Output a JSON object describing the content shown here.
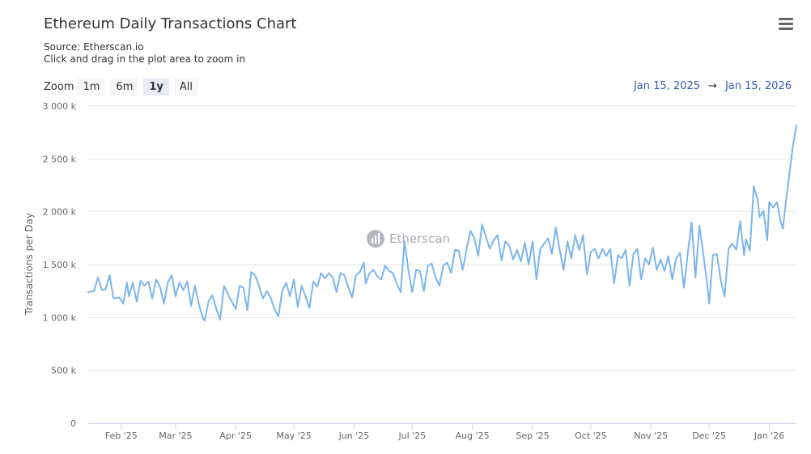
{
  "header": {
    "title": "Ethereum Daily Transactions Chart",
    "source": "Source: Etherscan.io",
    "hint": "Click and drag in the plot area to zoom in"
  },
  "zoom": {
    "label": "Zoom",
    "buttons": [
      "1m",
      "6m",
      "1y",
      "All"
    ],
    "active": "1y"
  },
  "range": {
    "from": "Jan 15, 2025",
    "arrow": "→",
    "to": "Jan 15, 2026"
  },
  "watermark": {
    "text": "Etherscan"
  },
  "icons": {
    "menu": "hamburger-menu-icon",
    "watermark_logo": "etherscan-logo-icon"
  },
  "colors": {
    "line": "#7cb5ec",
    "grid": "#e6e6e6",
    "range_text": "#335cad"
  },
  "chart_data": {
    "type": "line",
    "title": "Ethereum Daily Transactions Chart",
    "ylabel": "Transactions per Day",
    "ylim": [
      0,
      3000000
    ],
    "yticks": [
      {
        "value": 0,
        "label": "0"
      },
      {
        "value": 500000,
        "label": "500 k"
      },
      {
        "value": 1000000,
        "label": "1 000 k"
      },
      {
        "value": 1500000,
        "label": "1 500 k"
      },
      {
        "value": 2000000,
        "label": "2 000 k"
      },
      {
        "value": 2500000,
        "label": "2 500 k"
      },
      {
        "value": 3000000,
        "label": "3 000 k"
      }
    ],
    "xlim": [
      "2025-01-15",
      "2026-01-15"
    ],
    "xticks": [
      {
        "date": "2025-02-01",
        "label": "Feb '25"
      },
      {
        "date": "2025-03-01",
        "label": "Mar '25"
      },
      {
        "date": "2025-04-01",
        "label": "Apr '25"
      },
      {
        "date": "2025-05-01",
        "label": "May '25"
      },
      {
        "date": "2025-06-01",
        "label": "Jun '25"
      },
      {
        "date": "2025-07-01",
        "label": "Jul '25"
      },
      {
        "date": "2025-08-01",
        "label": "Aug '25"
      },
      {
        "date": "2025-09-01",
        "label": "Sep '25"
      },
      {
        "date": "2025-10-01",
        "label": "Oct '25"
      },
      {
        "date": "2025-11-01",
        "label": "Nov '25"
      },
      {
        "date": "2025-12-01",
        "label": "Dec '25"
      },
      {
        "date": "2026-01-01",
        "label": "Jan '26"
      }
    ],
    "series": [
      {
        "values": [
          [
            "2025-01-15",
            1240000
          ],
          [
            "2025-01-18",
            1250000
          ],
          [
            "2025-01-20",
            1380000
          ],
          [
            "2025-01-22",
            1260000
          ],
          [
            "2025-01-24",
            1270000
          ],
          [
            "2025-01-26",
            1400000
          ],
          [
            "2025-01-28",
            1180000
          ],
          [
            "2025-01-31",
            1190000
          ],
          [
            "2025-02-02",
            1130000
          ],
          [
            "2025-02-04",
            1330000
          ],
          [
            "2025-02-05",
            1200000
          ],
          [
            "2025-02-07",
            1330000
          ],
          [
            "2025-02-09",
            1150000
          ],
          [
            "2025-02-11",
            1350000
          ],
          [
            "2025-02-13",
            1300000
          ],
          [
            "2025-02-15",
            1340000
          ],
          [
            "2025-02-17",
            1180000
          ],
          [
            "2025-02-19",
            1360000
          ],
          [
            "2025-02-21",
            1290000
          ],
          [
            "2025-02-23",
            1130000
          ],
          [
            "2025-02-25",
            1330000
          ],
          [
            "2025-02-27",
            1400000
          ],
          [
            "2025-03-01",
            1200000
          ],
          [
            "2025-03-03",
            1330000
          ],
          [
            "2025-03-05",
            1260000
          ],
          [
            "2025-03-07",
            1340000
          ],
          [
            "2025-03-09",
            1110000
          ],
          [
            "2025-03-11",
            1300000
          ],
          [
            "2025-03-13",
            1130000
          ],
          [
            "2025-03-15",
            1000000
          ],
          [
            "2025-03-16",
            970000
          ],
          [
            "2025-03-18",
            1150000
          ],
          [
            "2025-03-20",
            1210000
          ],
          [
            "2025-03-22",
            1080000
          ],
          [
            "2025-03-24",
            980000
          ],
          [
            "2025-03-26",
            1300000
          ],
          [
            "2025-03-28",
            1220000
          ],
          [
            "2025-03-30",
            1150000
          ],
          [
            "2025-04-01",
            1080000
          ],
          [
            "2025-04-03",
            1300000
          ],
          [
            "2025-04-05",
            1280000
          ],
          [
            "2025-04-07",
            1070000
          ],
          [
            "2025-04-09",
            1430000
          ],
          [
            "2025-04-11",
            1400000
          ],
          [
            "2025-04-13",
            1300000
          ],
          [
            "2025-04-15",
            1180000
          ],
          [
            "2025-04-17",
            1250000
          ],
          [
            "2025-04-19",
            1190000
          ],
          [
            "2025-04-21",
            1080000
          ],
          [
            "2025-04-23",
            1010000
          ],
          [
            "2025-04-25",
            1250000
          ],
          [
            "2025-04-27",
            1330000
          ],
          [
            "2025-04-29",
            1200000
          ],
          [
            "2025-05-01",
            1360000
          ],
          [
            "2025-05-03",
            1100000
          ],
          [
            "2025-05-05",
            1300000
          ],
          [
            "2025-05-07",
            1200000
          ],
          [
            "2025-05-09",
            1090000
          ],
          [
            "2025-05-11",
            1340000
          ],
          [
            "2025-05-13",
            1290000
          ],
          [
            "2025-05-15",
            1420000
          ],
          [
            "2025-05-17",
            1370000
          ],
          [
            "2025-05-19",
            1420000
          ],
          [
            "2025-05-21",
            1380000
          ],
          [
            "2025-05-23",
            1240000
          ],
          [
            "2025-05-25",
            1420000
          ],
          [
            "2025-05-27",
            1400000
          ],
          [
            "2025-05-29",
            1290000
          ],
          [
            "2025-05-31",
            1190000
          ],
          [
            "2025-06-02",
            1400000
          ],
          [
            "2025-06-04",
            1430000
          ],
          [
            "2025-06-06",
            1520000
          ],
          [
            "2025-06-07",
            1320000
          ],
          [
            "2025-06-09",
            1420000
          ],
          [
            "2025-06-11",
            1450000
          ],
          [
            "2025-06-13",
            1390000
          ],
          [
            "2025-06-15",
            1360000
          ],
          [
            "2025-06-17",
            1490000
          ],
          [
            "2025-06-19",
            1440000
          ],
          [
            "2025-06-21",
            1420000
          ],
          [
            "2025-06-23",
            1320000
          ],
          [
            "2025-06-25",
            1240000
          ],
          [
            "2025-06-27",
            1720000
          ],
          [
            "2025-06-29",
            1450000
          ],
          [
            "2025-07-01",
            1240000
          ],
          [
            "2025-07-03",
            1450000
          ],
          [
            "2025-07-05",
            1440000
          ],
          [
            "2025-07-07",
            1250000
          ],
          [
            "2025-07-09",
            1490000
          ],
          [
            "2025-07-11",
            1510000
          ],
          [
            "2025-07-13",
            1380000
          ],
          [
            "2025-07-15",
            1300000
          ],
          [
            "2025-07-17",
            1490000
          ],
          [
            "2025-07-19",
            1520000
          ],
          [
            "2025-07-21",
            1420000
          ],
          [
            "2025-07-23",
            1640000
          ],
          [
            "2025-07-25",
            1630000
          ],
          [
            "2025-07-27",
            1450000
          ],
          [
            "2025-07-29",
            1650000
          ],
          [
            "2025-07-31",
            1820000
          ],
          [
            "2025-08-02",
            1750000
          ],
          [
            "2025-08-04",
            1580000
          ],
          [
            "2025-08-06",
            1880000
          ],
          [
            "2025-08-08",
            1760000
          ],
          [
            "2025-08-10",
            1650000
          ],
          [
            "2025-08-12",
            1730000
          ],
          [
            "2025-08-14",
            1780000
          ],
          [
            "2025-08-16",
            1540000
          ],
          [
            "2025-08-18",
            1720000
          ],
          [
            "2025-08-20",
            1680000
          ],
          [
            "2025-08-22",
            1550000
          ],
          [
            "2025-08-24",
            1640000
          ],
          [
            "2025-08-26",
            1530000
          ],
          [
            "2025-08-28",
            1710000
          ],
          [
            "2025-08-30",
            1500000
          ],
          [
            "2025-09-01",
            1720000
          ],
          [
            "2025-09-03",
            1360000
          ],
          [
            "2025-09-05",
            1650000
          ],
          [
            "2025-09-07",
            1700000
          ],
          [
            "2025-09-09",
            1750000
          ],
          [
            "2025-09-11",
            1600000
          ],
          [
            "2025-09-13",
            1850000
          ],
          [
            "2025-09-15",
            1640000
          ],
          [
            "2025-09-17",
            1450000
          ],
          [
            "2025-09-19",
            1720000
          ],
          [
            "2025-09-21",
            1560000
          ],
          [
            "2025-09-23",
            1780000
          ],
          [
            "2025-09-25",
            1640000
          ],
          [
            "2025-09-27",
            1780000
          ],
          [
            "2025-09-29",
            1410000
          ],
          [
            "2025-10-01",
            1620000
          ],
          [
            "2025-10-03",
            1650000
          ],
          [
            "2025-10-05",
            1560000
          ],
          [
            "2025-10-07",
            1650000
          ],
          [
            "2025-10-09",
            1580000
          ],
          [
            "2025-10-11",
            1650000
          ],
          [
            "2025-10-13",
            1320000
          ],
          [
            "2025-10-15",
            1590000
          ],
          [
            "2025-10-17",
            1560000
          ],
          [
            "2025-10-19",
            1640000
          ],
          [
            "2025-10-21",
            1300000
          ],
          [
            "2025-10-23",
            1600000
          ],
          [
            "2025-10-25",
            1650000
          ],
          [
            "2025-10-27",
            1360000
          ],
          [
            "2025-10-29",
            1560000
          ],
          [
            "2025-10-31",
            1500000
          ],
          [
            "2025-11-02",
            1660000
          ],
          [
            "2025-11-04",
            1450000
          ],
          [
            "2025-11-06",
            1550000
          ],
          [
            "2025-11-08",
            1440000
          ],
          [
            "2025-11-10",
            1580000
          ],
          [
            "2025-11-12",
            1360000
          ],
          [
            "2025-11-14",
            1560000
          ],
          [
            "2025-11-16",
            1610000
          ],
          [
            "2025-11-18",
            1280000
          ],
          [
            "2025-11-20",
            1610000
          ],
          [
            "2025-11-22",
            1900000
          ],
          [
            "2025-11-24",
            1380000
          ],
          [
            "2025-11-26",
            1870000
          ],
          [
            "2025-11-28",
            1600000
          ],
          [
            "2025-11-30",
            1320000
          ],
          [
            "2025-12-01",
            1130000
          ],
          [
            "2025-12-03",
            1590000
          ],
          [
            "2025-12-05",
            1600000
          ],
          [
            "2025-12-07",
            1350000
          ],
          [
            "2025-12-09",
            1200000
          ],
          [
            "2025-12-11",
            1650000
          ],
          [
            "2025-12-13",
            1700000
          ],
          [
            "2025-12-15",
            1640000
          ],
          [
            "2025-12-17",
            1910000
          ],
          [
            "2025-12-19",
            1590000
          ],
          [
            "2025-12-20",
            1740000
          ],
          [
            "2025-12-22",
            1630000
          ],
          [
            "2025-12-24",
            2240000
          ],
          [
            "2025-12-26",
            2110000
          ],
          [
            "2025-12-27",
            1950000
          ],
          [
            "2025-12-29",
            2010000
          ],
          [
            "2025-12-31",
            1730000
          ],
          [
            "2026-01-01",
            2090000
          ],
          [
            "2026-01-03",
            2040000
          ],
          [
            "2026-01-05",
            2090000
          ],
          [
            "2026-01-07",
            1900000
          ],
          [
            "2026-01-08",
            1840000
          ],
          [
            "2026-01-10",
            2160000
          ],
          [
            "2026-01-11",
            2300000
          ],
          [
            "2026-01-13",
            2600000
          ],
          [
            "2026-01-15",
            2820000
          ]
        ]
      }
    ],
    "grid": true,
    "legend": "none"
  }
}
